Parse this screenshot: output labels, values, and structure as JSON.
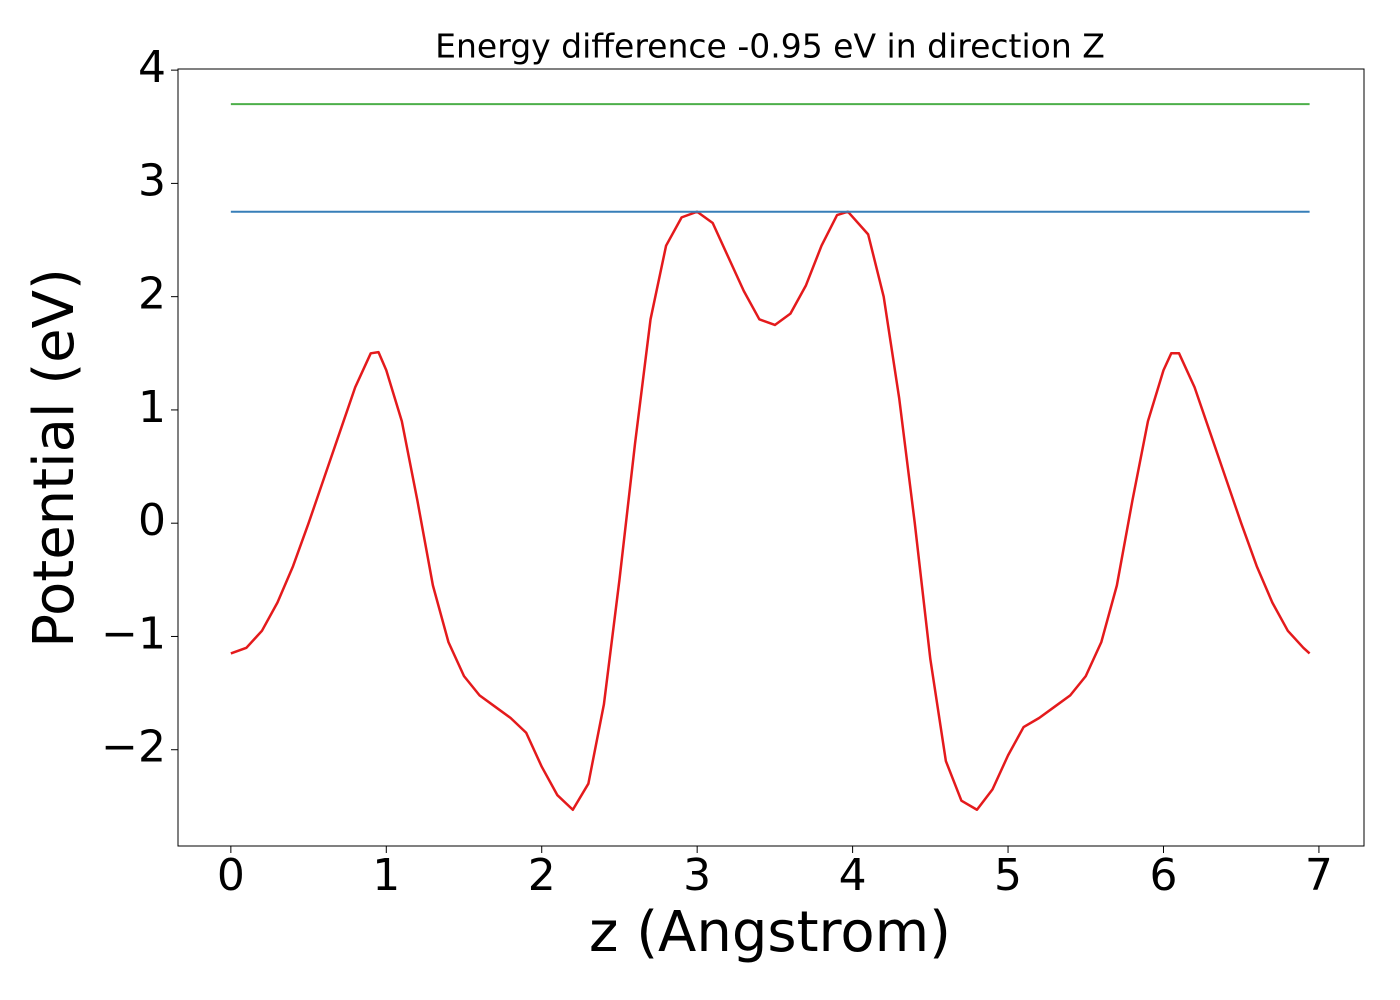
{
  "chart_data": {
    "type": "line",
    "title": "Energy difference -0.95 eV in direction Z",
    "xlabel": "z (Angstrom)",
    "ylabel": "Potential (eV)",
    "xlim": [
      -0.34,
      7.29
    ],
    "ylim": [
      -2.85,
      4.01
    ],
    "xticks": [
      0,
      1,
      2,
      3,
      4,
      5,
      6,
      7
    ],
    "yticks": [
      {
        "value": -2,
        "label": "−2"
      },
      {
        "value": -1,
        "label": "−1"
      },
      0,
      1,
      2,
      3,
      4
    ],
    "grid": false,
    "series": [
      {
        "color": "#e41a1c",
        "x": [
          0,
          0.1,
          0.2,
          0.3,
          0.4,
          0.5,
          0.6,
          0.7,
          0.8,
          0.9,
          0.95,
          1.0,
          1.1,
          1.2,
          1.3,
          1.4,
          1.5,
          1.6,
          1.7,
          1.8,
          1.9,
          2.0,
          2.1,
          2.2,
          2.3,
          2.4,
          2.5,
          2.6,
          2.7,
          2.8,
          2.9,
          3.0,
          3.1,
          3.2,
          3.3,
          3.4,
          3.5,
          3.6,
          3.7,
          3.8,
          3.9,
          3.97,
          4.1,
          4.2,
          4.3,
          4.4,
          4.5,
          4.6,
          4.7,
          4.8,
          4.9,
          5.0,
          5.1,
          5.2,
          5.3,
          5.4,
          5.5,
          5.6,
          5.7,
          5.8,
          5.9,
          6.0,
          6.05,
          6.1,
          6.2,
          6.3,
          6.4,
          6.5,
          6.6,
          6.7,
          6.8,
          6.9,
          6.94
        ],
        "values": [
          -1.15,
          -1.1,
          -0.95,
          -0.7,
          -0.38,
          0.0,
          0.4,
          0.8,
          1.2,
          1.5,
          1.51,
          1.35,
          0.9,
          0.2,
          -0.55,
          -1.05,
          -1.35,
          -1.52,
          -1.62,
          -1.72,
          -1.85,
          -2.15,
          -2.4,
          -2.53,
          -2.3,
          -1.6,
          -0.5,
          0.7,
          1.8,
          2.45,
          2.7,
          2.75,
          2.65,
          2.35,
          2.05,
          1.8,
          1.75,
          1.85,
          2.1,
          2.45,
          2.72,
          2.75,
          2.55,
          2.0,
          1.1,
          0.0,
          -1.2,
          -2.1,
          -2.45,
          -2.53,
          -2.35,
          -2.05,
          -1.8,
          -1.72,
          -1.62,
          -1.52,
          -1.35,
          -1.05,
          -0.55,
          0.2,
          0.9,
          1.35,
          1.5,
          1.5,
          1.2,
          0.8,
          0.4,
          0.0,
          -0.38,
          -0.7,
          -0.95,
          -1.1,
          -1.15
        ]
      },
      {
        "color": "#377eb8",
        "x": [
          0,
          6.94
        ],
        "values": [
          2.75,
          2.75
        ]
      },
      {
        "color": "#4daf4a",
        "x": [
          0,
          6.94
        ],
        "values": [
          3.7,
          3.7
        ]
      }
    ]
  }
}
